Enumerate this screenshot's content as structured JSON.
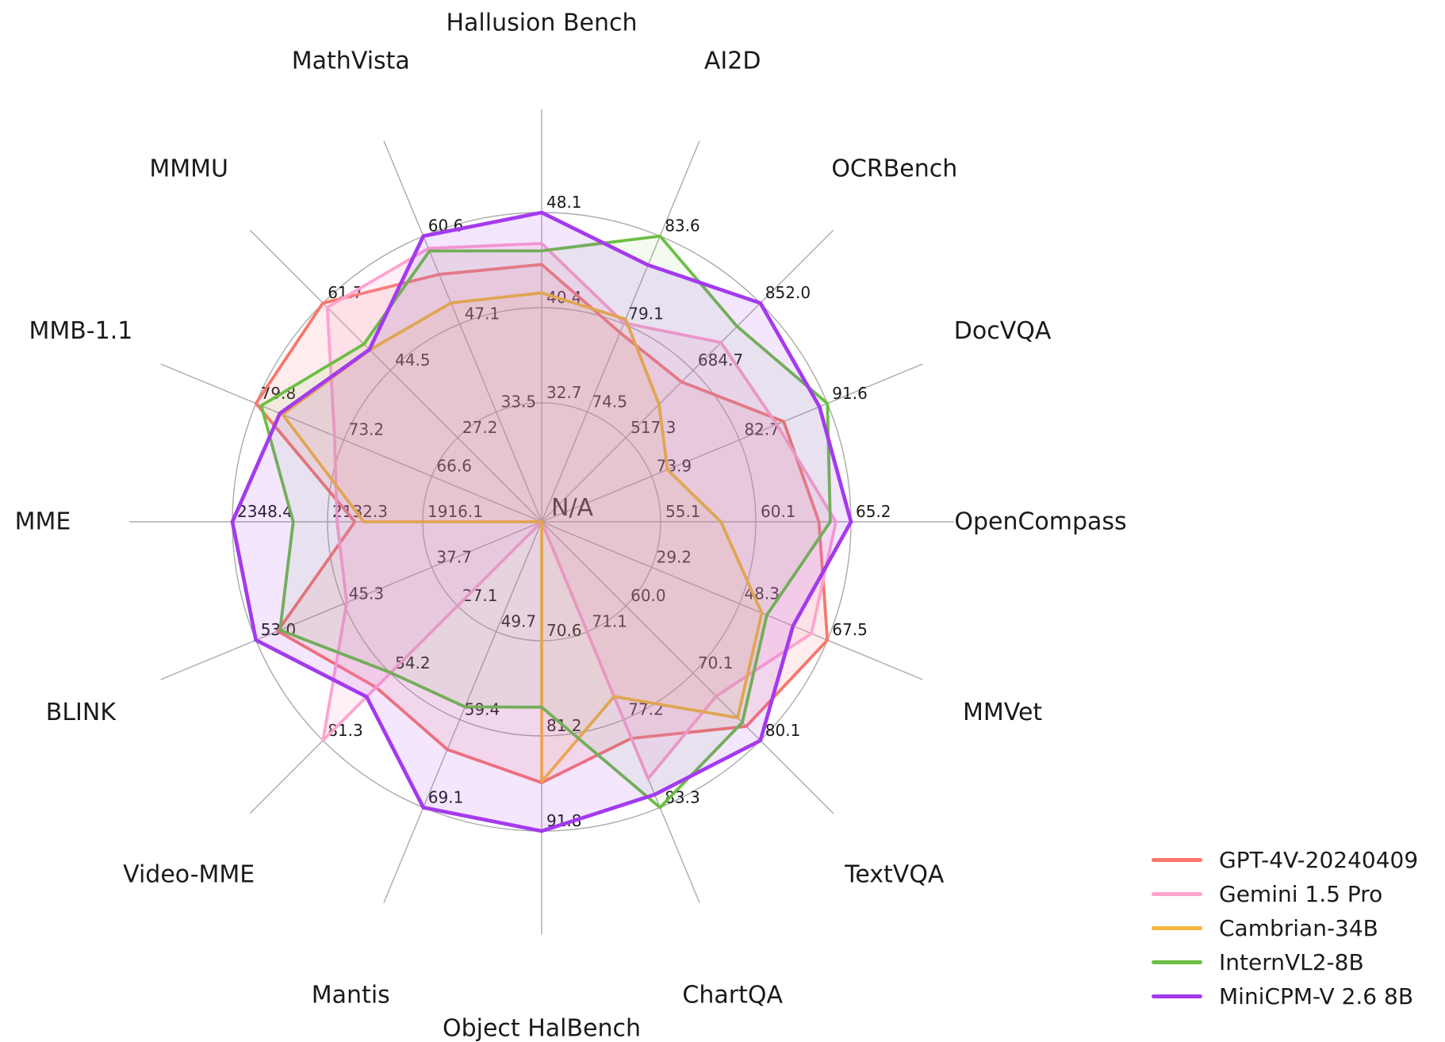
{
  "chart_data": {
    "type": "radar",
    "title": "",
    "center_label": "N/A",
    "grid": {
      "color": "#ABABAB",
      "rings": 3,
      "legend_position": "bottom-right",
      "note": "each axis has its own linear scale; ring labels inner/middle/outer"
    },
    "axes": [
      {
        "label": "Hallusion Bench",
        "ticks": [
          "32.7",
          "40.4",
          "48.1"
        ]
      },
      {
        "label": "AI2D",
        "ticks": [
          "74.5",
          "79.1",
          "83.6"
        ]
      },
      {
        "label": "OCRBench",
        "ticks": [
          "517.3",
          "684.7",
          "852.0"
        ]
      },
      {
        "label": "DocVQA",
        "ticks": [
          "73.9",
          "82.7",
          "91.6"
        ]
      },
      {
        "label": "OpenCompass",
        "ticks": [
          "55.1",
          "60.1",
          "65.2"
        ]
      },
      {
        "label": "MMVet",
        "ticks": [
          "29.2",
          "48.3",
          "67.5"
        ]
      },
      {
        "label": "TextVQA",
        "ticks": [
          "60.0",
          "70.1",
          "80.1"
        ]
      },
      {
        "label": "ChartQA",
        "ticks": [
          "71.1",
          "77.2",
          "83.3"
        ]
      },
      {
        "label": "Object HalBench",
        "ticks": [
          "70.6",
          "81.2",
          "91.8"
        ]
      },
      {
        "label": "Mantis",
        "ticks": [
          "49.7",
          "59.4",
          "69.1"
        ]
      },
      {
        "label": "Video-MME",
        "ticks": [
          "27.1",
          "54.2",
          "81.3"
        ]
      },
      {
        "label": "BLINK",
        "ticks": [
          "37.7",
          "45.3",
          "53.0"
        ]
      },
      {
        "label": "MME",
        "ticks": [
          "1916.1",
          "2132.3",
          "2348.4"
        ]
      },
      {
        "label": "MMB-1.1",
        "ticks": [
          "66.6",
          "73.2",
          "79.8"
        ]
      },
      {
        "label": "MMMU",
        "ticks": [
          "27.2",
          "44.5",
          "61.7"
        ]
      },
      {
        "label": "MathVista",
        "ticks": [
          "33.5",
          "47.1",
          "60.6"
        ]
      }
    ],
    "series": [
      {
        "name": "GPT-4V-20240409",
        "color": "#F8766D",
        "values": [
          43.9,
          78.6,
          656.0,
          87.2,
          63.5,
          67.5,
          78.0,
          78.5,
          86.4,
          62.7,
          59.9,
          51.1,
          2070.2,
          79.8,
          61.7,
          54.7
        ]
      },
      {
        "name": "Gemini 1.5 Pro",
        "color": "#FFA3CF",
        "values": [
          45.6,
          79.1,
          754.0,
          86.5,
          64.4,
          64.0,
          73.5,
          81.3,
          null,
          null,
          81.3,
          45.1,
          2110.6,
          73.9,
          60.6,
          58.7
        ]
      },
      {
        "name": "Cambrian-34B",
        "color": "#F6B53C",
        "values": [
          41.6,
          79.3,
          600.0,
          75.5,
          58.3,
          53.2,
          76.7,
          75.6,
          86.3,
          null,
          null,
          null,
          2049.9,
          77.8,
          49.7,
          50.3
        ]
      },
      {
        "name": "InternVL2-8B",
        "color": "#6CBE45",
        "values": [
          45.0,
          83.6,
          794.0,
          91.6,
          64.1,
          54.3,
          77.4,
          83.3,
          78.0,
          58.0,
          54.0,
          50.9,
          2210.3,
          79.4,
          51.2,
          58.3
        ]
      },
      {
        "name": "MiniCPM-V 2.6 8B",
        "color": "#A43AEE",
        "values": [
          48.1,
          82.1,
          852.0,
          90.8,
          65.2,
          60.0,
          80.1,
          82.4,
          91.8,
          69.1,
          63.7,
          53.0,
          2348.4,
          78.0,
          49.8,
          60.6
        ]
      }
    ]
  }
}
